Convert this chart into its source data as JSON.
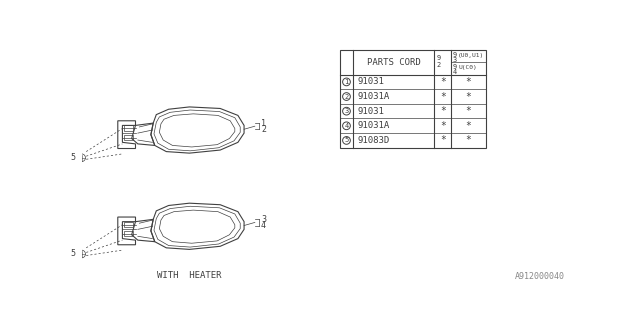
{
  "bg_color": "#ffffff",
  "line_color": "#404040",
  "watermark": "A912000040",
  "table": {
    "header_col1": "PARTS CORD",
    "rows": [
      {
        "num": "1",
        "code": "91031",
        "c1": "*",
        "c2": "*"
      },
      {
        "num": "2",
        "code": "91031A",
        "c1": "*",
        "c2": "*"
      },
      {
        "num": "3",
        "code": "91031",
        "c1": "*",
        "c2": "*"
      },
      {
        "num": "4",
        "code": "91031A",
        "c1": "*",
        "c2": "*"
      },
      {
        "num": "5",
        "code": "91083D",
        "c1": "*",
        "c2": "*"
      }
    ]
  },
  "mirror_top": {
    "label1": "1",
    "label2": "2",
    "show_heater": false
  },
  "mirror_bottom": {
    "label1": "3",
    "label2": "4",
    "show_heater": true
  },
  "with_heater_text": "WITH  HEATER"
}
